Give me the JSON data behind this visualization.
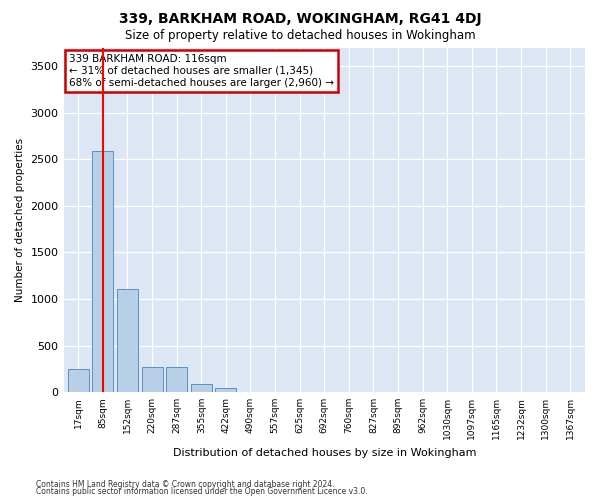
{
  "title1": "339, BARKHAM ROAD, WOKINGHAM, RG41 4DJ",
  "title2": "Size of property relative to detached houses in Wokingham",
  "xlabel": "Distribution of detached houses by size in Wokingham",
  "ylabel": "Number of detached properties",
  "categories": [
    "17sqm",
    "85sqm",
    "152sqm",
    "220sqm",
    "287sqm",
    "355sqm",
    "422sqm",
    "490sqm",
    "557sqm",
    "625sqm",
    "692sqm",
    "760sqm",
    "827sqm",
    "895sqm",
    "962sqm",
    "1030sqm",
    "1097sqm",
    "1165sqm",
    "1232sqm",
    "1300sqm",
    "1367sqm"
  ],
  "bar_values": [
    250,
    2590,
    1110,
    265,
    265,
    90,
    45,
    0,
    0,
    0,
    0,
    0,
    0,
    0,
    0,
    0,
    0,
    0,
    0,
    0,
    0
  ],
  "bar_color": "#b8cfe8",
  "bar_edge_color": "#5b8fc4",
  "bg_color": "#dce6f5",
  "grid_color": "#ffffff",
  "red_line_x": 1.0,
  "annotation_text": "339 BARKHAM ROAD: 116sqm\n← 31% of detached houses are smaller (1,345)\n68% of semi-detached houses are larger (2,960) →",
  "annotation_box_facecolor": "#ffffff",
  "annotation_box_edge": "#cc0000",
  "ylim": [
    0,
    3700
  ],
  "yticks": [
    0,
    500,
    1000,
    1500,
    2000,
    2500,
    3000,
    3500
  ],
  "footer1": "Contains HM Land Registry data © Crown copyright and database right 2024.",
  "footer2": "Contains public sector information licensed under the Open Government Licence v3.0.",
  "fig_width": 6.0,
  "fig_height": 5.0,
  "fig_dpi": 100
}
